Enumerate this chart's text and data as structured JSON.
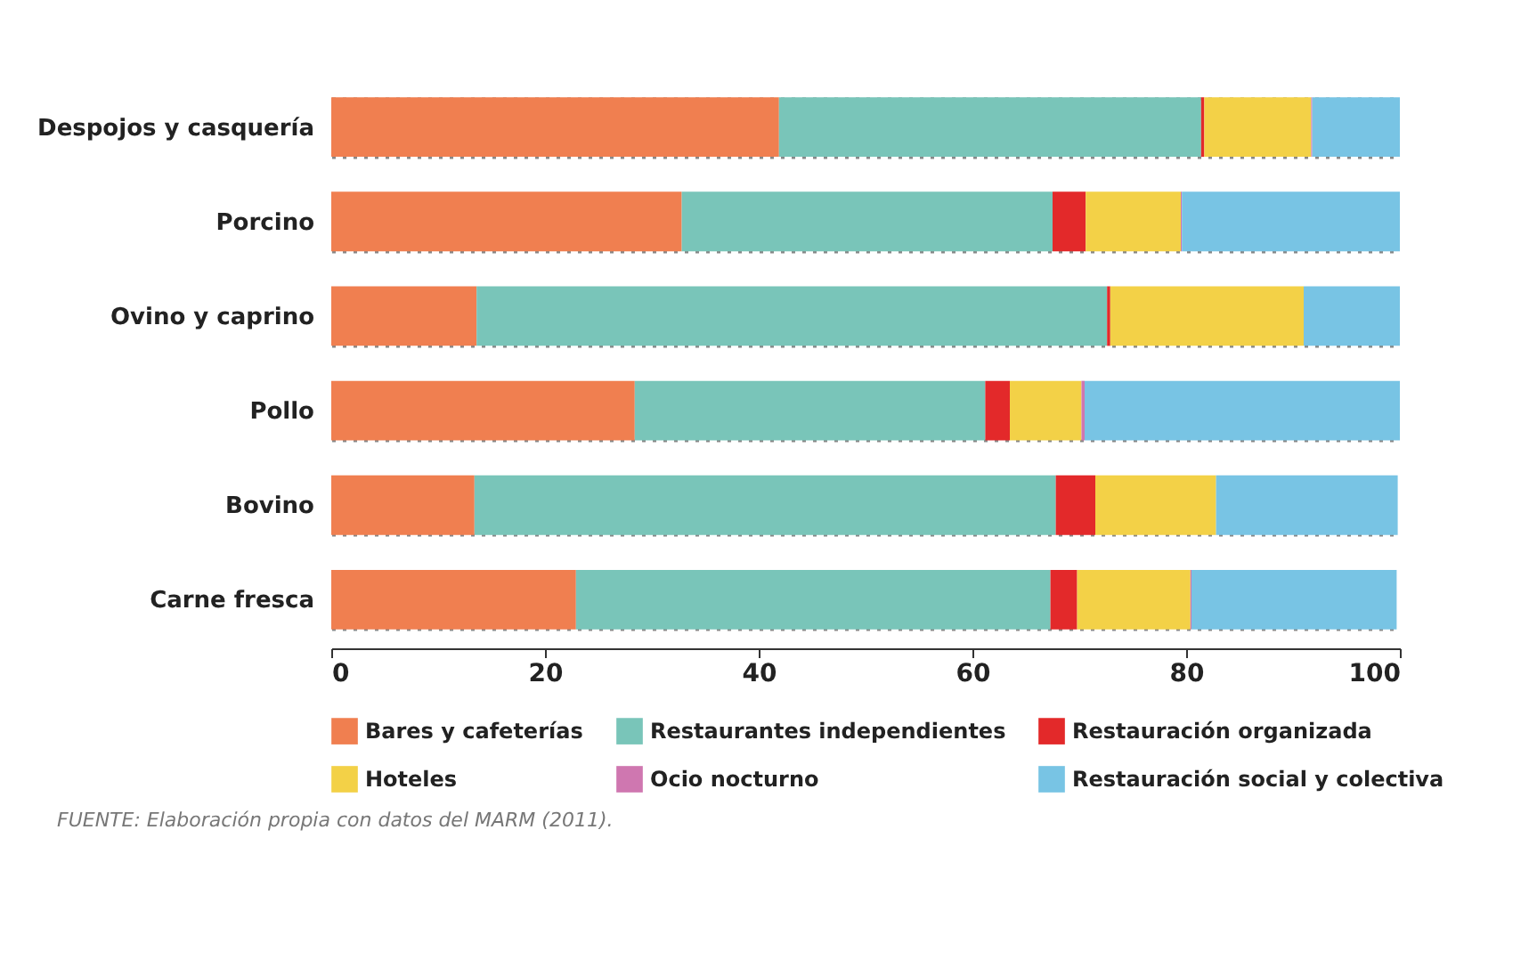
{
  "chart_data": {
    "type": "bar",
    "orientation": "horizontal",
    "stacked": true,
    "categories": [
      "Despojos y casquería",
      "Porcino",
      "Ovino y caprino",
      "Pollo",
      "Bovino",
      "Carne fresca"
    ],
    "series": [
      {
        "name": "Bares y cafeterías",
        "color": "#f07f50",
        "values": [
          41.9,
          32.8,
          13.6,
          28.4,
          13.4,
          22.9
        ]
      },
      {
        "name": "Restaurantes independientes",
        "color": "#79c5b9",
        "values": [
          39.5,
          34.7,
          59.0,
          32.8,
          54.4,
          44.4
        ]
      },
      {
        "name": "Restauración organizada",
        "color": "#e3292a",
        "values": [
          0.3,
          3.1,
          0.3,
          2.3,
          3.7,
          2.5
        ]
      },
      {
        "name": "Hoteles",
        "color": "#f3d147",
        "values": [
          10.0,
          8.9,
          18.1,
          6.7,
          11.3,
          10.6
        ]
      },
      {
        "name": "Ocio nocturno",
        "color": "#cf77b0",
        "values": [
          0.1,
          0.1,
          0,
          0.3,
          0,
          0.1
        ]
      },
      {
        "name": "Restauración social y colectiva",
        "color": "#78c4e4",
        "values": [
          8.2,
          20.4,
          9.0,
          29.5,
          17.0,
          19.2
        ]
      }
    ],
    "xlim": [
      0,
      100
    ],
    "xticks": [
      0,
      20,
      40,
      60,
      80,
      100
    ],
    "grid": "y",
    "legend": "bottom",
    "annotations": [
      "FUENTE: Elaboración propia con datos del MARM (2011)."
    ]
  }
}
